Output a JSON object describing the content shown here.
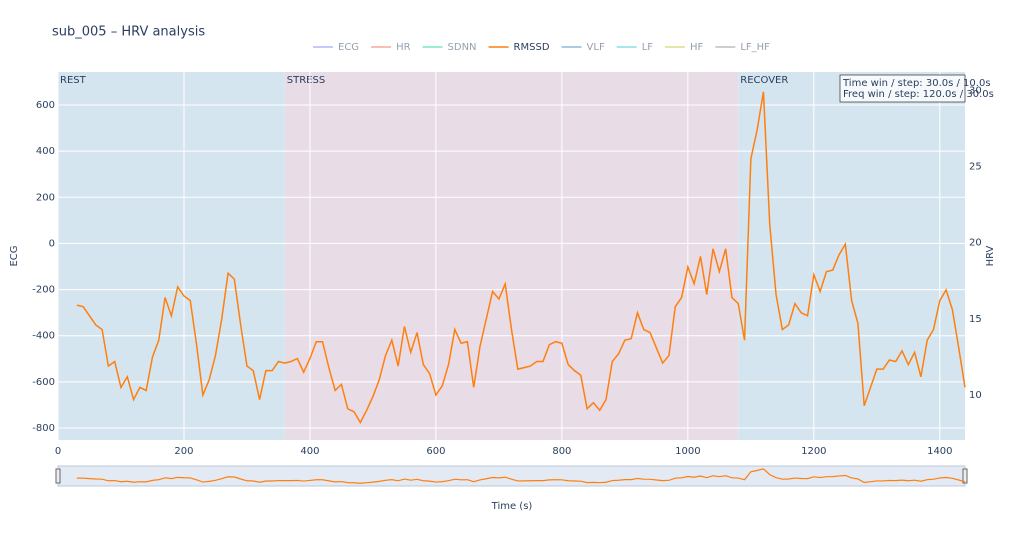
{
  "chart_data": {
    "type": "line",
    "title": "sub_005 – HRV analysis",
    "x_label": "Time (s)",
    "y_label": "ECG",
    "y2_label": "HRV",
    "xlim": [
      0,
      1440
    ],
    "xticks": [
      0,
      200,
      400,
      600,
      800,
      1000,
      1200,
      1400
    ],
    "ylim": [
      -852,
      743
    ],
    "yticks": [
      -800,
      -600,
      -400,
      -200,
      0,
      200,
      400,
      600
    ],
    "y2lim": [
      7.05,
      31.2
    ],
    "y2ticks": [
      10,
      15,
      20,
      25,
      30
    ],
    "grid": true,
    "legend": "top",
    "regions": [
      {
        "label": "REST",
        "start": 0,
        "end": 360,
        "color": "#d5e5ef"
      },
      {
        "label": "STRESS",
        "start": 360,
        "end": 1080,
        "color": "#e8dce6"
      },
      {
        "label": "RECOVER",
        "start": 1080,
        "end": 1440,
        "color": "#d5e5ef"
      }
    ],
    "annotation": [
      "Time win / step: 30.0s / 10.0s",
      "Freq win / step: 120.0s / 30.0s"
    ],
    "x": [
      30,
      40,
      50,
      60,
      70,
      80,
      90,
      100,
      110,
      120,
      130,
      140,
      150,
      160,
      170,
      180,
      190,
      200,
      210,
      220,
      230,
      240,
      250,
      260,
      270,
      280,
      290,
      300,
      310,
      320,
      330,
      340,
      350,
      360,
      370,
      380,
      390,
      400,
      410,
      420,
      430,
      440,
      450,
      460,
      470,
      480,
      490,
      500,
      510,
      520,
      530,
      540,
      550,
      560,
      570,
      580,
      590,
      600,
      610,
      620,
      630,
      640,
      650,
      660,
      670,
      680,
      690,
      700,
      710,
      720,
      730,
      740,
      750,
      760,
      770,
      780,
      790,
      800,
      810,
      820,
      830,
      840,
      850,
      860,
      870,
      880,
      890,
      900,
      910,
      920,
      930,
      940,
      950,
      960,
      970,
      980,
      990,
      1000,
      1010,
      1020,
      1030,
      1040,
      1050,
      1060,
      1070,
      1080,
      1090,
      1100,
      1110,
      1120,
      1130,
      1140,
      1150,
      1160,
      1170,
      1180,
      1190,
      1200,
      1210,
      1220,
      1230,
      1240,
      1250,
      1260,
      1270,
      1280,
      1290,
      1300,
      1310,
      1320,
      1330,
      1340,
      1350,
      1360,
      1370,
      1380,
      1390,
      1400,
      1410,
      1420,
      1430,
      1440
    ],
    "series": [
      {
        "name": "ECG",
        "color": "#636efa",
        "visible": false
      },
      {
        "name": "HR",
        "color": "#ef553b",
        "visible": false
      },
      {
        "name": "SDNN",
        "color": "#00cc96",
        "visible": false
      },
      {
        "name": "RMSSD",
        "color": "#ff7f0e",
        "axis": "y2",
        "visible": true,
        "values": [
          15.9,
          15.8,
          15.2,
          14.6,
          14.3,
          11.9,
          12.2,
          10.5,
          11.2,
          9.7,
          10.5,
          10.3,
          12.5,
          13.6,
          16.4,
          15.2,
          17.1,
          16.5,
          16.2,
          13.3,
          10.0,
          11.0,
          12.6,
          15.0,
          18.0,
          17.6,
          14.6,
          11.9,
          11.6,
          9.7,
          11.6,
          11.6,
          12.2,
          12.1,
          12.2,
          12.4,
          11.5,
          12.4,
          13.5,
          13.5,
          11.8,
          10.3,
          10.7,
          9.1,
          8.9,
          8.2,
          9.0,
          9.9,
          11.0,
          12.6,
          13.6,
          11.9,
          14.5,
          12.8,
          14.1,
          12.0,
          11.4,
          10.0,
          10.6,
          12.0,
          14.3,
          13.4,
          13.5,
          10.5,
          13.2,
          15.0,
          16.8,
          16.3,
          17.3,
          14.3,
          11.7,
          11.8,
          11.9,
          12.2,
          12.2,
          13.3,
          13.5,
          13.4,
          12.0,
          11.6,
          11.3,
          9.1,
          9.5,
          9.0,
          9.7,
          12.2,
          12.7,
          13.6,
          13.7,
          15.4,
          14.3,
          14.1,
          13.1,
          12.1,
          12.6,
          15.8,
          16.4,
          18.4,
          17.3,
          19.1,
          16.6,
          19.6,
          18.1,
          19.6,
          16.4,
          16.0,
          13.6,
          25.5,
          27.4,
          29.9,
          21.2,
          16.6,
          14.3,
          14.6,
          16.0,
          15.4,
          15.2,
          17.9,
          16.8,
          18.1,
          18.2,
          19.2,
          19.9,
          16.2,
          14.7,
          9.3,
          10.5,
          11.7,
          11.7,
          12.3,
          12.2,
          12.9,
          12.0,
          12.8,
          11.2,
          13.6,
          14.3,
          16.2,
          16.9,
          15.6,
          13.1,
          10.5
        ]
      },
      {
        "name": "VLF",
        "color": "#1f77b4",
        "visible": false
      },
      {
        "name": "LF",
        "color": "#17becf",
        "visible": false
      },
      {
        "name": "HF",
        "color": "#bcbd22",
        "visible": false
      },
      {
        "name": "LF_HF",
        "color": "#7f7f7f",
        "visible": false
      }
    ]
  }
}
